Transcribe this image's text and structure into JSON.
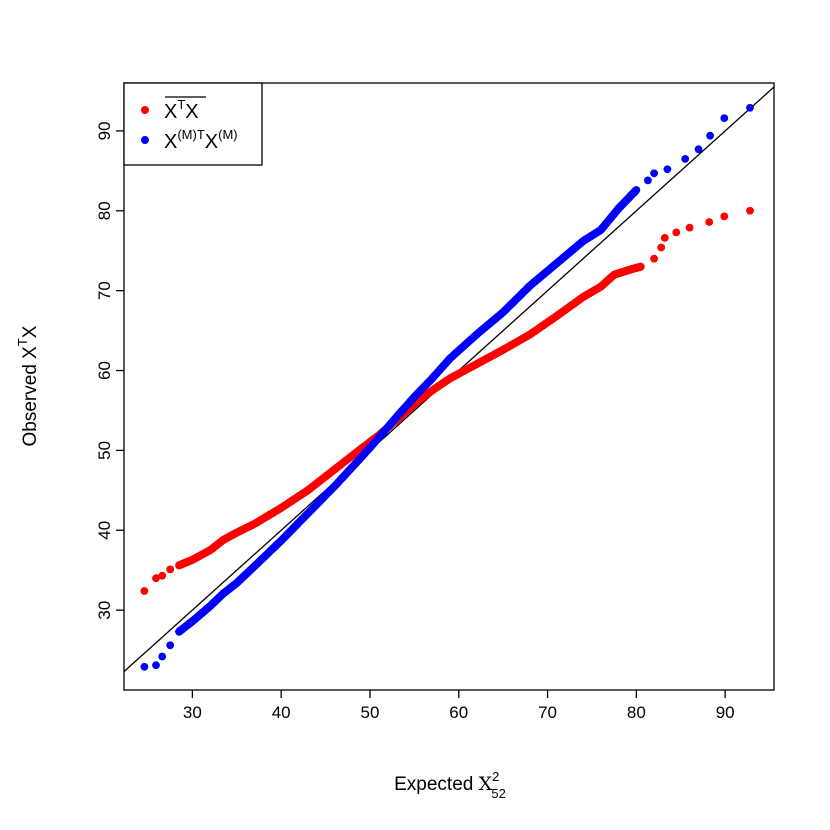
{
  "chart_data": {
    "type": "scatter",
    "title": "",
    "xlabel": {
      "main": "Expected ",
      "symbol": "X",
      "sup": "2",
      "sub": "52"
    },
    "ylabel": {
      "main": "Observed X",
      "sup": "T",
      "tail": "X"
    },
    "xlim": [
      22.3,
      95.5
    ],
    "ylim": [
      20.0,
      96.0
    ],
    "x_ticks": [
      30,
      40,
      50,
      60,
      70,
      80,
      90
    ],
    "y_ticks": [
      30,
      40,
      50,
      60,
      70,
      80,
      90
    ],
    "reference_line": {
      "type": "identity",
      "slope": 1,
      "intercept": 0,
      "color": "#000000"
    },
    "legend": {
      "placement": "top-left",
      "entries": [
        {
          "label": "X",
          "sup": "T",
          "tail": "X",
          "overline": true,
          "color": "#ff0000"
        },
        {
          "label": "X",
          "sup": "(M)T",
          "tail": "X",
          "tail_sup": "(M)",
          "color": "#0000ff"
        }
      ]
    },
    "series": [
      {
        "color": "#ff0000",
        "curve": [
          [
            24.6,
            32.4
          ],
          [
            25.9,
            34.0
          ],
          [
            26.6,
            34.3
          ],
          [
            27.5,
            35.1
          ],
          [
            28.5,
            35.6
          ],
          [
            30.0,
            36.3
          ],
          [
            32.0,
            37.5
          ],
          [
            33.5,
            38.8
          ],
          [
            35.0,
            39.7
          ],
          [
            37.0,
            40.8
          ],
          [
            40.0,
            42.8
          ],
          [
            43.0,
            45.0
          ],
          [
            46.0,
            47.6
          ],
          [
            49.0,
            50.2
          ],
          [
            51.0,
            51.9
          ],
          [
            53.0,
            53.8
          ],
          [
            55.0,
            55.8
          ],
          [
            57.0,
            57.5
          ],
          [
            59.0,
            59.0
          ],
          [
            62.0,
            60.8
          ],
          [
            65.0,
            62.6
          ],
          [
            68.0,
            64.5
          ],
          [
            71.0,
            66.8
          ],
          [
            74.0,
            69.2
          ],
          [
            76.0,
            70.5
          ],
          [
            77.5,
            72.0
          ],
          [
            79.5,
            72.7
          ],
          [
            80.5,
            73.0
          ],
          [
            82.0,
            74.0
          ],
          [
            82.8,
            75.4
          ],
          [
            83.2,
            76.6
          ],
          [
            84.5,
            77.3
          ],
          [
            86.0,
            77.9
          ],
          [
            88.2,
            78.6
          ],
          [
            89.9,
            79.3
          ],
          [
            92.8,
            80.0
          ]
        ],
        "samples": 1000
      },
      {
        "color": "#0000ff",
        "curve": [
          [
            24.6,
            22.9
          ],
          [
            25.9,
            23.1
          ],
          [
            26.6,
            24.2
          ],
          [
            27.5,
            25.6
          ],
          [
            28.5,
            27.3
          ],
          [
            30.0,
            28.6
          ],
          [
            32.0,
            30.5
          ],
          [
            33.5,
            32.1
          ],
          [
            35.0,
            33.4
          ],
          [
            37.0,
            35.5
          ],
          [
            40.0,
            38.7
          ],
          [
            43.0,
            42.1
          ],
          [
            46.0,
            45.5
          ],
          [
            49.0,
            49.1
          ],
          [
            51.0,
            51.6
          ],
          [
            53.0,
            54.2
          ],
          [
            55.0,
            56.7
          ],
          [
            57.0,
            59.0
          ],
          [
            59.0,
            61.5
          ],
          [
            62.0,
            64.5
          ],
          [
            65.0,
            67.3
          ],
          [
            68.0,
            70.6
          ],
          [
            71.0,
            73.4
          ],
          [
            74.0,
            76.2
          ],
          [
            76.0,
            77.6
          ],
          [
            78.0,
            80.3
          ],
          [
            80.0,
            82.6
          ],
          [
            81.3,
            83.8
          ],
          [
            82.0,
            84.7
          ],
          [
            83.5,
            85.2
          ],
          [
            85.5,
            86.5
          ],
          [
            87.0,
            87.7
          ],
          [
            88.3,
            89.4
          ],
          [
            89.9,
            91.6
          ],
          [
            92.8,
            92.9
          ]
        ],
        "samples": 1000
      }
    ]
  }
}
